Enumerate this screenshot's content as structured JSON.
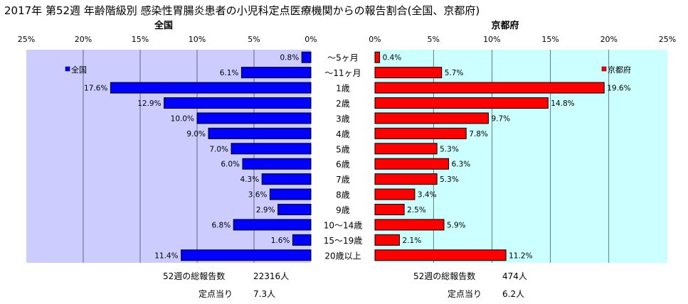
{
  "chart_data": [
    {
      "type": "bar",
      "orientation": "horizontal",
      "direction": "leftward",
      "title": "全国",
      "categories": [
        "～5ヶ月",
        "～11ヶ月",
        "1歳",
        "2歳",
        "3歳",
        "4歳",
        "5歳",
        "6歳",
        "7歳",
        "8歳",
        "9歳",
        "10～14歳",
        "15～19歳",
        "20歳以上"
      ],
      "series": [
        {
          "name": "全国",
          "values": [
            0.8,
            6.1,
            17.6,
            12.9,
            10.0,
            9.0,
            7.0,
            6.0,
            4.3,
            3.6,
            2.9,
            6.8,
            1.6,
            11.4
          ]
        }
      ],
      "value_labels": [
        "0.8%",
        "6.1%",
        "17.6%",
        "12.9%",
        "10.0%",
        "9.0%",
        "7.0%",
        "6.0%",
        "4.3%",
        "3.6%",
        "2.9%",
        "6.8%",
        "1.6%",
        "11.4%"
      ],
      "xlim": [
        0,
        25
      ],
      "ticks": [
        0,
        5,
        10,
        15,
        20,
        25
      ],
      "tick_labels": [
        "0%",
        "5%",
        "10%",
        "15%",
        "20%",
        "25%"
      ],
      "grid": true,
      "legend": "top-left",
      "color": "#0000ff",
      "plot_background": "#ccccff"
    },
    {
      "type": "bar",
      "orientation": "horizontal",
      "direction": "rightward",
      "title": "京都府",
      "categories": [
        "～5ヶ月",
        "～11ヶ月",
        "1歳",
        "2歳",
        "3歳",
        "4歳",
        "5歳",
        "6歳",
        "7歳",
        "8歳",
        "9歳",
        "10～14歳",
        "15～19歳",
        "20歳以上"
      ],
      "series": [
        {
          "name": "京都府",
          "values": [
            0.4,
            5.7,
            19.6,
            14.8,
            9.7,
            7.8,
            5.3,
            6.3,
            5.3,
            3.4,
            2.5,
            5.9,
            2.1,
            11.2
          ]
        }
      ],
      "value_labels": [
        "0.4%",
        "5.7%",
        "19.6%",
        "14.8%",
        "9.7%",
        "7.8%",
        "5.3%",
        "6.3%",
        "5.3%",
        "3.4%",
        "2.5%",
        "5.9%",
        "2.1%",
        "11.2%"
      ],
      "xlim": [
        0,
        25
      ],
      "ticks": [
        0,
        5,
        10,
        15,
        20,
        25
      ],
      "tick_labels": [
        "0%",
        "5%",
        "10%",
        "15%",
        "20%",
        "25%"
      ],
      "grid": true,
      "legend": "top-right",
      "color": "#ff0000",
      "plot_background": "#ccffff"
    }
  ],
  "title": "2017年 第52週 年齢階級別 感染性胃腸炎患者の小児科定点医療機関からの報告割合(全国、京都府)",
  "footer": {
    "national": {
      "total_label": "52週の総報告数",
      "total_value": "22316人",
      "per_label": "定点当り",
      "per_value": "7.3人"
    },
    "kyoto": {
      "total_label": "52週の総報告数",
      "total_value": "474人",
      "per_label": "定点当り",
      "per_value": "6.2人"
    }
  },
  "colors": {
    "bar_edge": "#000000",
    "grid": "#000000"
  }
}
